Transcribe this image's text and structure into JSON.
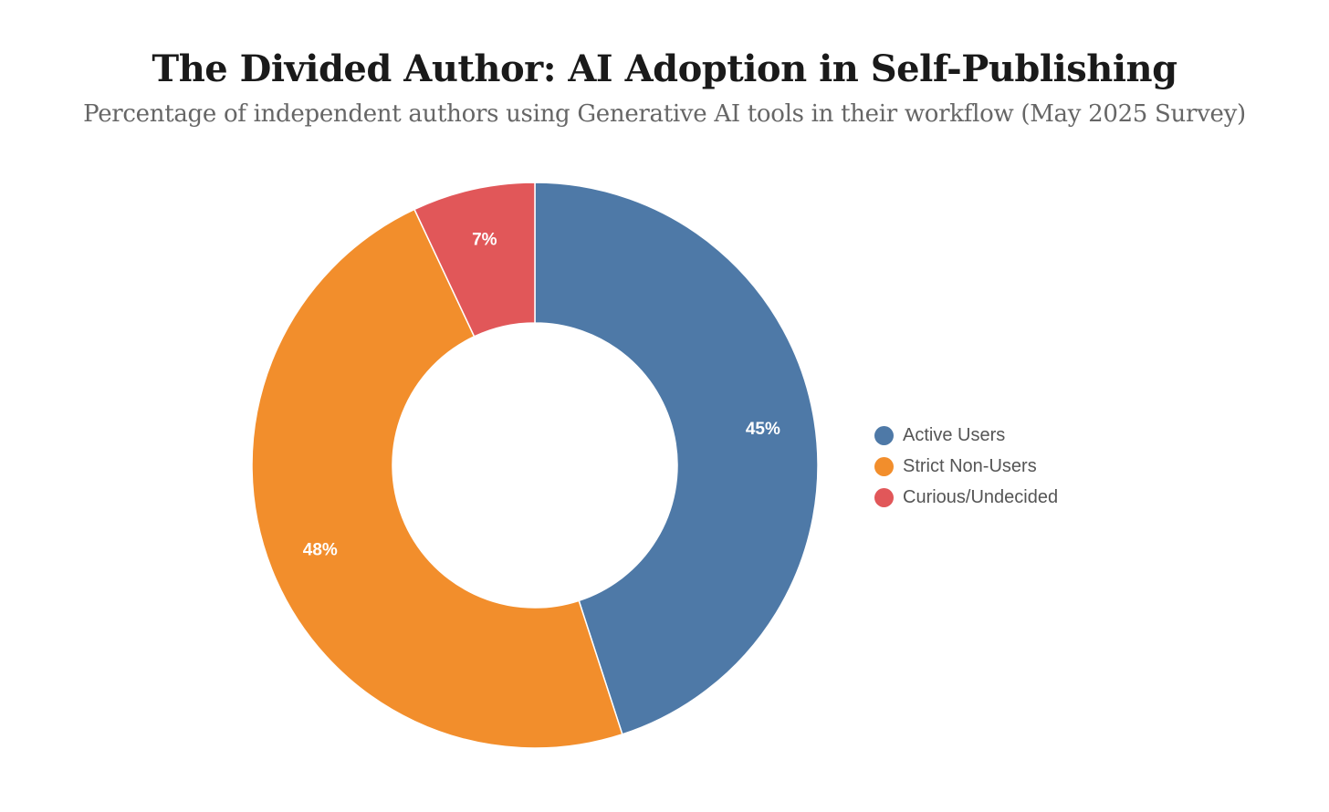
{
  "chart_data": {
    "type": "pie",
    "variant": "donut",
    "title": "The Divided Author: AI Adoption in Self-Publishing",
    "subtitle": "Percentage of independent authors using Generative AI tools in their workflow (May 2025 Survey)",
    "legend_position": "right",
    "categories": [
      "Active Users",
      "Strict Non-Users",
      "Curious/Undecided"
    ],
    "values": [
      45,
      48,
      7
    ],
    "data_labels": [
      "45%",
      "48%",
      "7%"
    ],
    "colors": [
      "#4e79a7",
      "#f28e2c",
      "#e15759"
    ]
  }
}
